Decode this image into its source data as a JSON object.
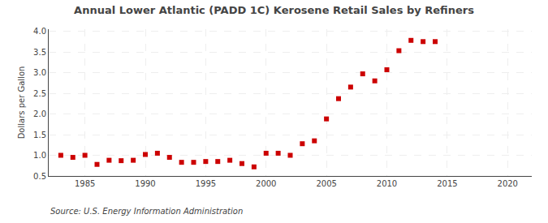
{
  "chart_data": {
    "type": "scatter",
    "title": "Annual Lower Atlantic (PADD 1C) Kerosene Retail Sales by Refiners",
    "ylabel": "Dollars per Gallon",
    "annotations": [
      "Source: U.S. Energy Information Administration"
    ],
    "x": [
      1983,
      1984,
      1985,
      1986,
      1987,
      1988,
      1989,
      1990,
      1991,
      1992,
      1993,
      1994,
      1995,
      1996,
      1997,
      1998,
      1999,
      2000,
      2001,
      2002,
      2003,
      2004,
      2005,
      2006,
      2007,
      2008,
      2009,
      2010,
      2011,
      2012,
      2013,
      2014
    ],
    "values": [
      1.0,
      0.95,
      1.0,
      0.78,
      0.88,
      0.87,
      0.88,
      1.02,
      1.05,
      0.95,
      0.83,
      0.83,
      0.85,
      0.85,
      0.88,
      0.8,
      0.72,
      1.05,
      1.05,
      1.0,
      1.28,
      1.35,
      1.88,
      2.37,
      2.65,
      2.97,
      2.8,
      3.07,
      3.53,
      3.78,
      3.75,
      3.75
    ],
    "color": "#cc0000",
    "marker": "square",
    "xlim": [
      1982,
      2022
    ],
    "ylim": [
      0.5,
      4.05
    ],
    "xticks": [
      1985,
      1990,
      1995,
      2000,
      2005,
      2010,
      2015,
      2020
    ],
    "yticks": [
      0.5,
      {
        "value": 1.0,
        "label": "1.0"
      },
      1.5,
      {
        "value": 2.0,
        "label": "2.0"
      },
      2.5,
      {
        "value": 3.0,
        "label": "3.0"
      },
      3.5,
      {
        "value": 4.0,
        "label": "4.0"
      }
    ],
    "grid": true
  }
}
